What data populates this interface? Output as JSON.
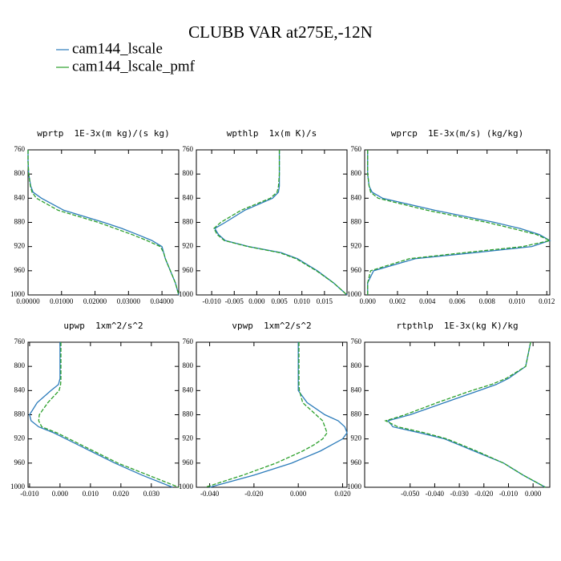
{
  "title": "CLUBB VAR at275E,-12N",
  "chart_data": [
    {
      "type": "line",
      "title": "wprtp  1E-3x(m kg)/(s kg)",
      "y": [
        760,
        780,
        800,
        820,
        830,
        840,
        860,
        880,
        890,
        900,
        910,
        920,
        930,
        940,
        960,
        980,
        1000
      ],
      "ylim": [
        1000,
        760
      ],
      "yticks": [
        760,
        800,
        840,
        880,
        920,
        960,
        1000
      ],
      "xlim": [
        0,
        0.045
      ],
      "xticks": [
        {
          "value": 0,
          "label": "0.00000"
        },
        {
          "value": 0.01,
          "label": "0.01000"
        },
        {
          "value": 0.02,
          "label": "0.02000"
        },
        {
          "value": 0.03,
          "label": "0.03000"
        },
        {
          "value": 0.04,
          "label": "0.04000"
        }
      ],
      "series": [
        {
          "name": "cam144_lscale",
          "color": "#2b7bba",
          "style": "solid",
          "values": [
            0,
            0,
            0.0002,
            0.0008,
            0.0015,
            0.004,
            0.0107,
            0.0226,
            0.028,
            0.0326,
            0.037,
            0.04,
            0.0405,
            0.041,
            0.0425,
            0.044,
            0.045
          ]
        },
        {
          "name": "cam144_lscale_pmf",
          "color": "#2ca02c",
          "style": "dashed",
          "values": [
            0,
            0,
            0.0002,
            0.0007,
            0.0012,
            0.0025,
            0.009,
            0.021,
            0.026,
            0.031,
            0.0355,
            0.0395,
            0.0405,
            0.041,
            0.0425,
            0.044,
            0.045
          ]
        }
      ]
    },
    {
      "type": "line",
      "title": "wpthlp  1x(m K)/s",
      "y": [
        760,
        780,
        800,
        820,
        830,
        840,
        860,
        880,
        890,
        900,
        910,
        920,
        930,
        940,
        960,
        980,
        1000
      ],
      "ylim": [
        1000,
        760
      ],
      "yticks": [
        760,
        800,
        840,
        880,
        920,
        960,
        1000
      ],
      "xlim": [
        -0.0134,
        0.02
      ],
      "xticks": [
        {
          "value": -0.01,
          "label": "-0.010"
        },
        {
          "value": -0.005,
          "label": "-0.005"
        },
        {
          "value": 0,
          "label": "0.000"
        },
        {
          "value": 0.005,
          "label": "0.005"
        },
        {
          "value": 0.01,
          "label": "0.010"
        },
        {
          "value": 0.015,
          "label": "0.015"
        }
      ],
      "series": [
        {
          "name": "cam144_lscale",
          "color": "#2b7bba",
          "style": "solid",
          "values": [
            0.005,
            0.005,
            0.005,
            0.005,
            0.0048,
            0.0035,
            -0.0027,
            -0.007,
            -0.0093,
            -0.0085,
            -0.007,
            -0.0018,
            0.0054,
            0.009,
            0.0134,
            0.017,
            0.02
          ]
        },
        {
          "name": "cam144_lscale_pmf",
          "color": "#2ca02c",
          "style": "dashed",
          "values": [
            0.005,
            0.005,
            0.005,
            0.0048,
            0.0045,
            0.003,
            -0.0035,
            -0.008,
            -0.0095,
            -0.0088,
            -0.0072,
            -0.002,
            0.005,
            0.0087,
            0.0132,
            0.017,
            0.02
          ]
        }
      ]
    },
    {
      "type": "line",
      "title": "wprcp  1E-3x(m/s) (kg/kg)",
      "y": [
        760,
        780,
        800,
        820,
        830,
        840,
        860,
        880,
        890,
        900,
        910,
        920,
        930,
        940,
        960,
        980,
        1000
      ],
      "ylim": [
        1000,
        760
      ],
      "yticks": [
        760,
        800,
        840,
        880,
        920,
        960,
        1000
      ],
      "xlim": [
        -0.0002,
        0.0122
      ],
      "xticks": [
        {
          "value": 0,
          "label": "0.000"
        },
        {
          "value": 0.002,
          "label": "0.002"
        },
        {
          "value": 0.004,
          "label": "0.004"
        },
        {
          "value": 0.006,
          "label": "0.006"
        },
        {
          "value": 0.008,
          "label": "0.008"
        },
        {
          "value": 0.01,
          "label": "0.010"
        },
        {
          "value": 0.012,
          "label": "0.012"
        }
      ],
      "series": [
        {
          "name": "cam144_lscale",
          "color": "#2b7bba",
          "style": "solid",
          "values": [
            0,
            0,
            0,
            0.0001,
            0.0003,
            0.001,
            0.0045,
            0.0085,
            0.0102,
            0.0115,
            0.0122,
            0.011,
            0.0072,
            0.0032,
            0.0004,
            0,
            0
          ]
        },
        {
          "name": "cam144_lscale_pmf",
          "color": "#2ca02c",
          "style": "dashed",
          "values": [
            0,
            0,
            0,
            0.0001,
            0.0002,
            0.0007,
            0.004,
            0.008,
            0.0097,
            0.0113,
            0.0122,
            0.0104,
            0.0065,
            0.0028,
            0.0002,
            0,
            0
          ]
        }
      ]
    },
    {
      "type": "line",
      "title": "upwp  1xm^2/s^2",
      "y": [
        760,
        780,
        800,
        820,
        830,
        840,
        860,
        880,
        890,
        900,
        910,
        920,
        930,
        940,
        960,
        980,
        1000
      ],
      "ylim": [
        1000,
        760
      ],
      "yticks": [
        760,
        800,
        840,
        880,
        920,
        960,
        1000
      ],
      "xlim": [
        -0.0105,
        0.039
      ],
      "xticks": [
        {
          "value": -0.01,
          "label": "-0.010"
        },
        {
          "value": 0,
          "label": "0.000"
        },
        {
          "value": 0.01,
          "label": "0.010"
        },
        {
          "value": 0.02,
          "label": "0.020"
        },
        {
          "value": 0.03,
          "label": "0.030"
        }
      ],
      "series": [
        {
          "name": "cam144_lscale",
          "color": "#2b7bba",
          "style": "solid",
          "values": [
            0,
            0,
            0,
            0,
            -0.0005,
            -0.003,
            -0.0075,
            -0.01,
            -0.0095,
            -0.007,
            -0.002,
            0.002,
            0.006,
            0.01,
            0.018,
            0.027,
            0.037
          ]
        },
        {
          "name": "cam144_lscale_pmf",
          "color": "#2ca02c",
          "style": "dashed",
          "values": [
            0.0003,
            0.0003,
            0.0003,
            0.0003,
            0.0002,
            -0.0003,
            -0.004,
            -0.0068,
            -0.007,
            -0.006,
            -0.001,
            0.003,
            0.007,
            0.011,
            0.019,
            0.029,
            0.039
          ]
        }
      ]
    },
    {
      "type": "line",
      "title": "vpwp  1xm^2/s^2",
      "y": [
        760,
        780,
        800,
        820,
        830,
        840,
        860,
        880,
        890,
        900,
        910,
        920,
        930,
        940,
        960,
        980,
        1000
      ],
      "ylim": [
        1000,
        760
      ],
      "yticks": [
        760,
        800,
        840,
        880,
        920,
        960,
        1000
      ],
      "xlim": [
        -0.046,
        0.022
      ],
      "xticks": [
        {
          "value": -0.04,
          "label": "-0.040"
        },
        {
          "value": -0.02,
          "label": "-0.020"
        },
        {
          "value": 0,
          "label": "0.000"
        },
        {
          "value": 0.02,
          "label": "0.020"
        }
      ],
      "series": [
        {
          "name": "cam144_lscale",
          "color": "#2b7bba",
          "style": "solid",
          "values": [
            0,
            0,
            0,
            0,
            0,
            0,
            0.004,
            0.012,
            0.018,
            0.021,
            0.022,
            0.02,
            0.015,
            0.01,
            -0.003,
            -0.02,
            -0.04
          ]
        },
        {
          "name": "cam144_lscale_pmf",
          "color": "#2ca02c",
          "style": "dashed",
          "values": [
            0.0003,
            0.0003,
            0.0003,
            0.0003,
            0.0003,
            0.0005,
            0.002,
            0.008,
            0.011,
            0.012,
            0.013,
            0.011,
            0.007,
            0.002,
            -0.01,
            -0.025,
            -0.042
          ]
        }
      ]
    },
    {
      "type": "line",
      "title": "rtpthlp  1E-3x(kg K)/kg",
      "y": [
        760,
        780,
        800,
        820,
        830,
        840,
        860,
        880,
        890,
        900,
        910,
        920,
        930,
        940,
        960,
        980,
        1000
      ],
      "ylim": [
        1000,
        760
      ],
      "yticks": [
        760,
        800,
        840,
        880,
        920,
        960,
        1000
      ],
      "xlim": [
        -0.0685,
        0.0068
      ],
      "xticks": [
        {
          "value": -0.05,
          "label": "-0.050"
        },
        {
          "value": -0.04,
          "label": "-0.040"
        },
        {
          "value": -0.03,
          "label": "-0.030"
        },
        {
          "value": -0.02,
          "label": "-0.020"
        },
        {
          "value": -0.01,
          "label": "-0.010"
        },
        {
          "value": 0,
          "label": "0.000"
        }
      ],
      "series": [
        {
          "name": "cam144_lscale",
          "color": "#2b7bba",
          "style": "solid",
          "values": [
            -0.001,
            -0.002,
            -0.003,
            -0.01,
            -0.015,
            -0.022,
            -0.036,
            -0.05,
            -0.059,
            -0.057,
            -0.046,
            -0.036,
            -0.03,
            -0.024,
            -0.012,
            -0.004,
            0.005
          ]
        },
        {
          "name": "cam144_lscale_pmf",
          "color": "#2ca02c",
          "style": "dashed",
          "values": [
            -0.001,
            -0.002,
            -0.003,
            -0.011,
            -0.017,
            -0.025,
            -0.039,
            -0.052,
            -0.06,
            -0.055,
            -0.044,
            -0.035,
            -0.029,
            -0.023,
            -0.012,
            -0.004,
            0.005
          ]
        }
      ]
    }
  ]
}
